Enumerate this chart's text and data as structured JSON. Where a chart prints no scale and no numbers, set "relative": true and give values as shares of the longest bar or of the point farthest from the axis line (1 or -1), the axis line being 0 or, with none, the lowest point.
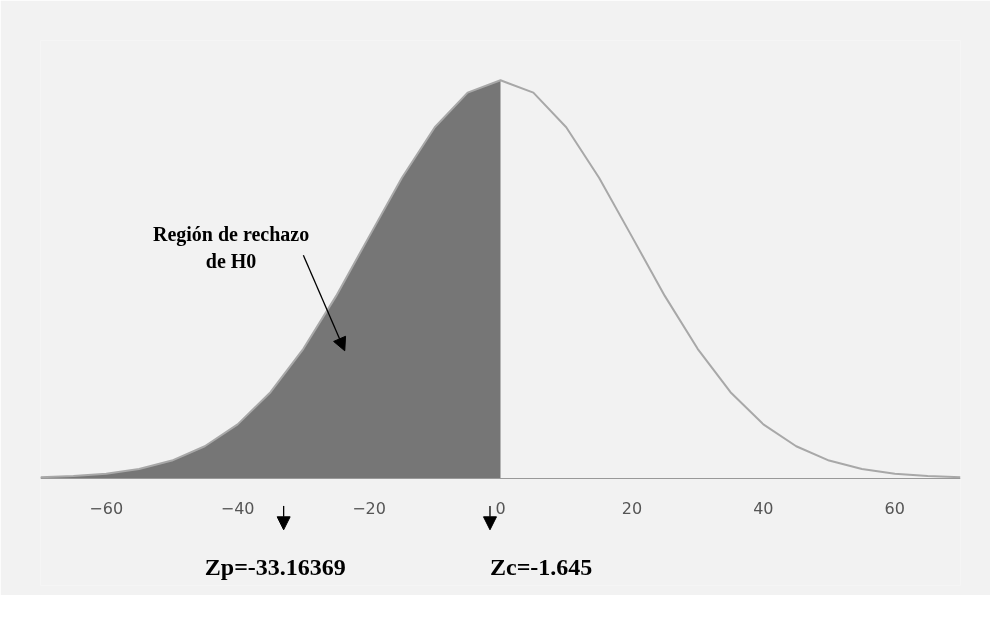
{
  "chart_data": {
    "type": "area",
    "relative": true,
    "xlim": [
      -70,
      70
    ],
    "xticks": [
      -60,
      -40,
      -20,
      0,
      20,
      40,
      60
    ],
    "grid": false,
    "tick_labels": "x",
    "series": [
      {
        "color": "#767676",
        "x": [
          -70,
          -65,
          -60,
          -55,
          -50,
          -45,
          -40,
          -35,
          -30,
          -25,
          -20,
          -15,
          -10,
          -5,
          0
        ],
        "values": [
          0.002,
          0.005,
          0.011,
          0.023,
          0.044,
          0.08,
          0.135,
          0.216,
          0.325,
          0.458,
          0.607,
          0.755,
          0.882,
          0.969,
          1
        ]
      },
      {
        "type": "line",
        "color": "#a8a8a8",
        "x": [
          -70,
          -65,
          -60,
          -55,
          -50,
          -45,
          -40,
          -35,
          -30,
          -25,
          -20,
          -15,
          -10,
          -5,
          0,
          5,
          10,
          15,
          20,
          25,
          30,
          35,
          40,
          45,
          50,
          55,
          60,
          65,
          70
        ],
        "values": [
          0.002,
          0.005,
          0.011,
          0.023,
          0.044,
          0.08,
          0.135,
          0.216,
          0.325,
          0.458,
          0.607,
          0.755,
          0.882,
          0.969,
          1,
          0.969,
          0.882,
          0.755,
          0.607,
          0.458,
          0.325,
          0.216,
          0.135,
          0.08,
          0.044,
          0.023,
          0.011,
          0.005,
          0.002
        ]
      }
    ],
    "annotations": [
      "Región de rechazo\nde H0",
      "Zp=-33.16369",
      "Zc=-1.645"
    ]
  }
}
